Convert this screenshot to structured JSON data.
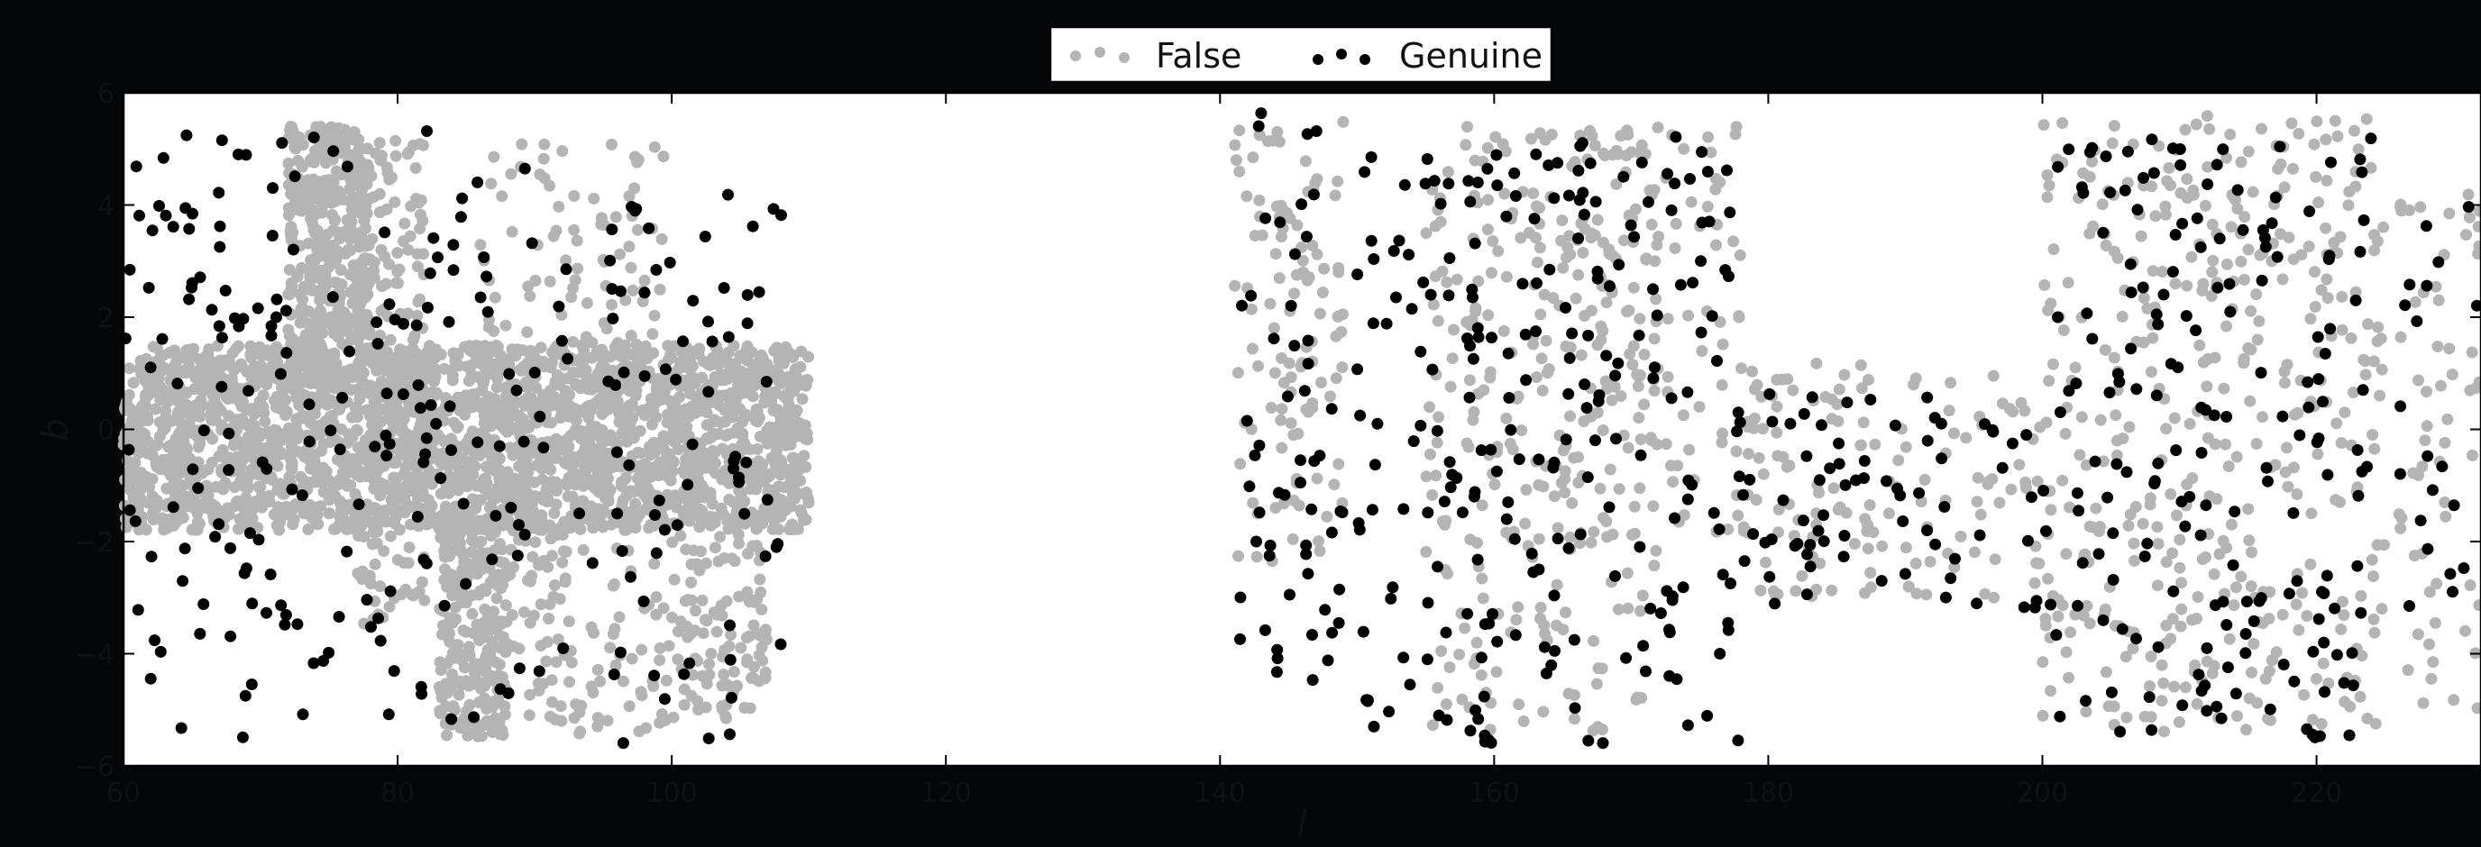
{
  "chart_data": {
    "type": "scatter",
    "xlabel": "l",
    "ylabel": "b",
    "xlim": [
      60,
      232
    ],
    "ylim": [
      -6,
      6
    ],
    "xticks": [
      60,
      80,
      100,
      120,
      140,
      160,
      180,
      200,
      220
    ],
    "yticks": [
      -6,
      -4,
      -2,
      0,
      2,
      4,
      6
    ],
    "grid": false,
    "legend": {
      "placement": "top-center",
      "entries": [
        "False",
        "Genuine"
      ]
    },
    "colors": {
      "false": "#b4b4b4",
      "genuine": "#000000",
      "background": "#050608",
      "plot": "#ffffff"
    },
    "series": [
      {
        "name": "False",
        "clusters": [
          {
            "l": [
              60,
              110
            ],
            "b": [
              -1.8,
              1.5
            ],
            "count": 2400
          },
          {
            "l": [
              72,
              78
            ],
            "b": [
              1.5,
              5.4
            ],
            "count": 350
          },
          {
            "l": [
              77,
              82
            ],
            "b": [
              -3.5,
              5.2
            ],
            "count": 220
          },
          {
            "l": [
              83,
              88
            ],
            "b": [
              -5.5,
              -1.5
            ],
            "count": 260
          },
          {
            "l": [
              86,
              100
            ],
            "b": [
              -5.5,
              5.2
            ],
            "count": 300
          },
          {
            "l": [
              100,
              107
            ],
            "b": [
              -5.2,
              -1.5
            ],
            "count": 120
          },
          {
            "l": [
              141,
              149
            ],
            "b": [
              -2.5,
              5.6
            ],
            "count": 110
          },
          {
            "l": [
              155,
              172
            ],
            "b": [
              -5.4,
              5.4
            ],
            "count": 260
          },
          {
            "l": [
              163,
              178
            ],
            "b": [
              -2,
              5.4
            ],
            "count": 120
          },
          {
            "l": [
              178,
              200
            ],
            "b": [
              -3,
              1.2
            ],
            "count": 140
          },
          {
            "l": [
              200,
              225
            ],
            "b": [
              -5.4,
              5.6
            ],
            "count": 420
          },
          {
            "l": [
              226,
              232
            ],
            "b": [
              -5,
              4.8
            ],
            "count": 60
          }
        ]
      },
      {
        "name": "Genuine",
        "clusters": [
          {
            "l": [
              60,
              108
            ],
            "b": [
              -5.6,
              5.4
            ],
            "count": 260
          },
          {
            "l": [
              141,
              149
            ],
            "b": [
              -4.5,
              5.7
            ],
            "count": 55
          },
          {
            "l": [
              150,
              178
            ],
            "b": [
              -5.6,
              5.3
            ],
            "count": 230
          },
          {
            "l": [
              178,
              200
            ],
            "b": [
              -3.2,
              0.8
            ],
            "count": 70
          },
          {
            "l": [
              200,
              224
            ],
            "b": [
              -5.5,
              5.3
            ],
            "count": 180
          },
          {
            "l": [
              226,
              232
            ],
            "b": [
              -4.5,
              4.6
            ],
            "count": 20
          }
        ]
      }
    ]
  }
}
